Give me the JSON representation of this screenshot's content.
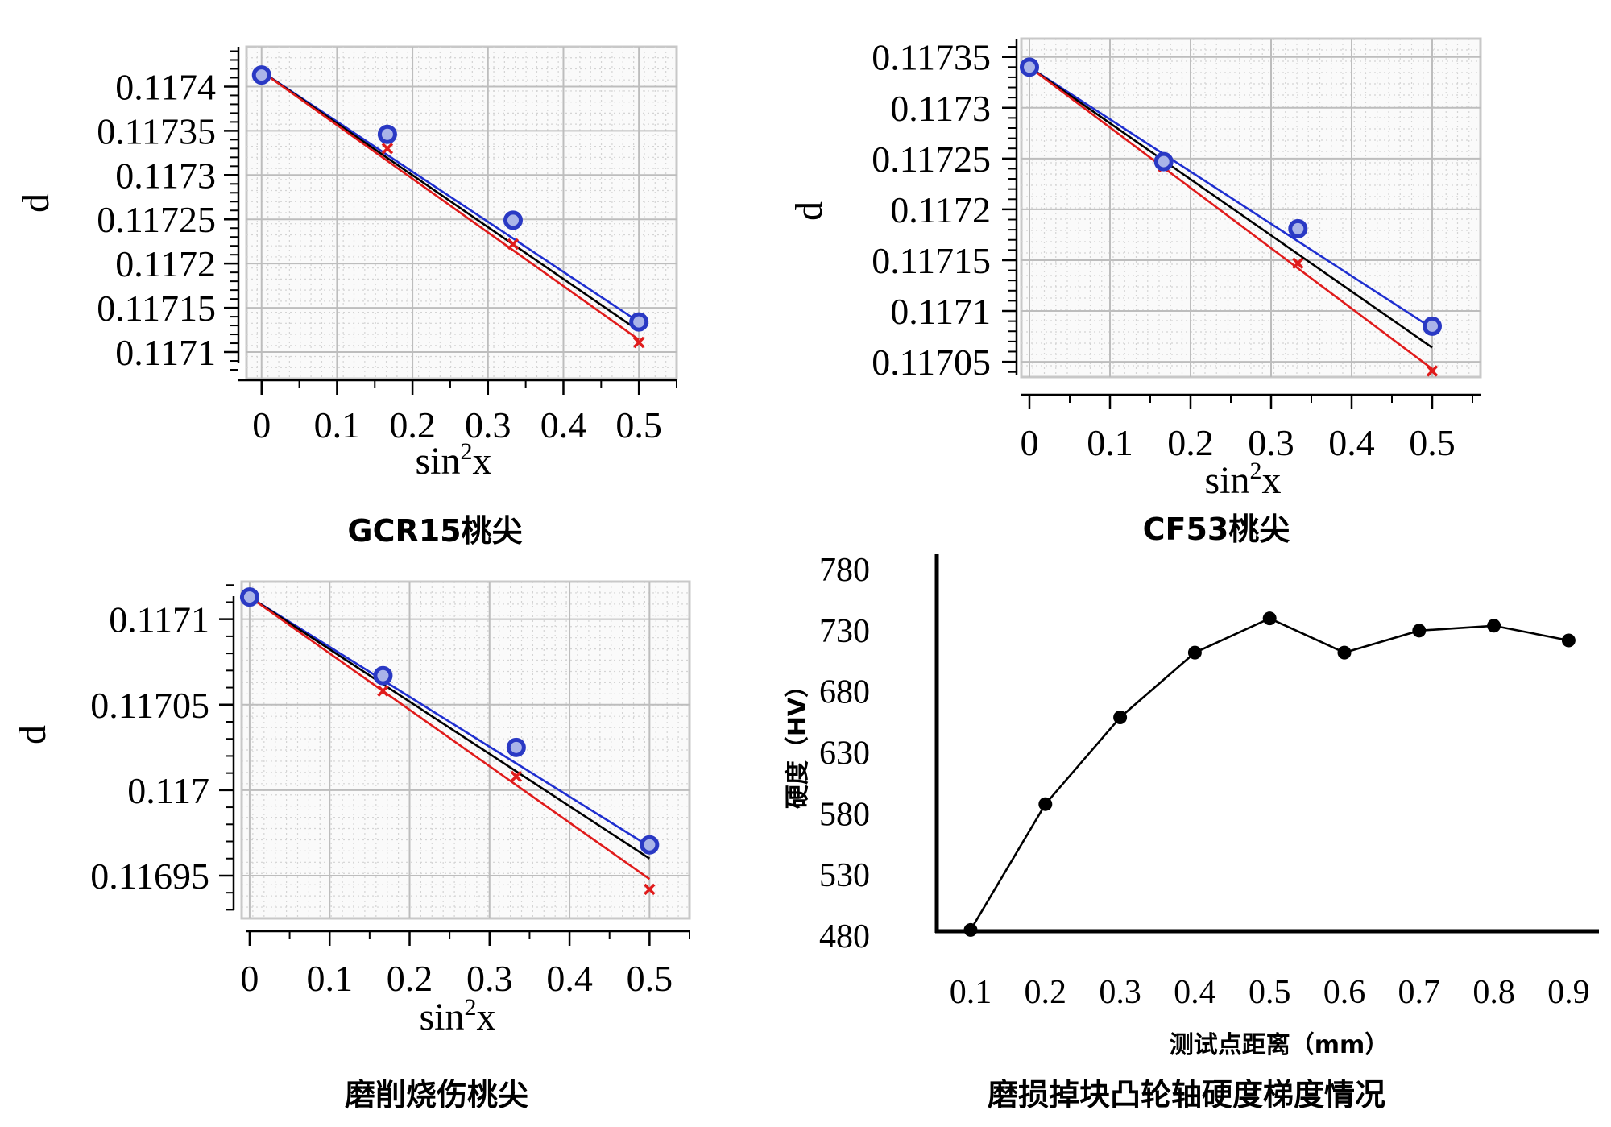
{
  "chart_data": [
    {
      "type": "line",
      "caption": "GCR15桃尖",
      "xlabel": "sin",
      "xlabel_sup": "2",
      "xlabel_tail": "x",
      "ylabel": "d",
      "xlim": [
        -0.02,
        0.55
      ],
      "ylim": [
        0.11707,
        0.117445
      ],
      "xticks": [
        0,
        0.1,
        0.2,
        0.3,
        0.4,
        0.5
      ],
      "xtick_labels": [
        "0",
        "0.1",
        "0.2",
        "0.3",
        "0.4",
        "0.5"
      ],
      "yticks": [
        0.1171,
        0.11715,
        0.1172,
        0.11725,
        0.1173,
        0.11735,
        0.1174
      ],
      "ytick_labels": [
        "0.1171",
        "0.11715",
        "0.1172",
        "0.11725",
        "0.1173",
        "0.11735",
        "0.1174"
      ],
      "series": [
        {
          "name": "blue fit",
          "color": "#1f2fd0",
          "kind": "line",
          "x": [
            0,
            0.5
          ],
          "y": [
            0.117417,
            0.117134
          ]
        },
        {
          "name": "black fit",
          "color": "#000000",
          "kind": "line",
          "x": [
            0,
            0.5
          ],
          "y": [
            0.117417,
            0.117124
          ]
        },
        {
          "name": "red fit",
          "color": "#e01b1b",
          "kind": "line",
          "x": [
            0,
            0.5
          ],
          "y": [
            0.117417,
            0.117114
          ]
        },
        {
          "name": "measured (circle)",
          "color": "#2a39c4",
          "kind": "circle",
          "x": [
            0,
            0.1667,
            0.3333,
            0.5
          ],
          "y": [
            0.117413,
            0.117346,
            0.117249,
            0.117134
          ]
        },
        {
          "name": "measured (cross)",
          "color": "#e01b1b",
          "kind": "cross",
          "x": [
            0,
            0.1667,
            0.3333,
            0.5
          ],
          "y": [
            0.117413,
            0.11733,
            0.117222,
            0.117111
          ]
        }
      ]
    },
    {
      "type": "line",
      "caption": "CF53桃尖",
      "xlabel": "sin",
      "xlabel_sup": "2",
      "xlabel_tail": "x",
      "ylabel": "d",
      "xlim": [
        -0.01,
        0.56
      ],
      "ylim": [
        0.117035,
        0.117368
      ],
      "xticks": [
        0,
        0.1,
        0.2,
        0.3,
        0.4,
        0.5
      ],
      "xtick_labels": [
        "0",
        "0.1",
        "0.2",
        "0.3",
        "0.4",
        "0.5"
      ],
      "yticks": [
        0.11705,
        0.1171,
        0.11715,
        0.1172,
        0.11725,
        0.1173,
        0.11735
      ],
      "ytick_labels": [
        "0.11705",
        "0.1171",
        "0.11715",
        "0.1172",
        "0.11725",
        "0.1173",
        "0.11735"
      ],
      "series": [
        {
          "name": "blue fit",
          "color": "#1f2fd0",
          "kind": "line",
          "x": [
            0,
            0.5
          ],
          "y": [
            0.11734,
            0.117083
          ]
        },
        {
          "name": "black fit",
          "color": "#000000",
          "kind": "line",
          "x": [
            0,
            0.5
          ],
          "y": [
            0.11734,
            0.117064
          ]
        },
        {
          "name": "red fit",
          "color": "#e01b1b",
          "kind": "line",
          "x": [
            0,
            0.5
          ],
          "y": [
            0.11734,
            0.117043
          ]
        },
        {
          "name": "measured (circle)",
          "color": "#2a39c4",
          "kind": "circle",
          "x": [
            0,
            0.1667,
            0.3333,
            0.5
          ],
          "y": [
            0.11734,
            0.117247,
            0.117181,
            0.117085
          ]
        },
        {
          "name": "measured (cross)",
          "color": "#e01b1b",
          "kind": "cross",
          "x": [
            0,
            0.1667,
            0.3333,
            0.5
          ],
          "y": [
            0.11734,
            0.117242,
            0.117147,
            0.117041
          ]
        }
      ]
    },
    {
      "type": "line",
      "caption": "磨削烧伤桃尖",
      "xlabel": "sin",
      "xlabel_sup": "2",
      "xlabel_tail": "x",
      "ylabel": "d",
      "xlim": [
        -0.01,
        0.55
      ],
      "ylim": [
        0.116925,
        0.117122
      ],
      "xticks": [
        0,
        0.1,
        0.2,
        0.3,
        0.4,
        0.5
      ],
      "xtick_labels": [
        "0",
        "0.1",
        "0.2",
        "0.3",
        "0.4",
        "0.5"
      ],
      "yticks": [
        0.11695,
        0.117,
        0.11705,
        0.1171
      ],
      "ytick_labels": [
        "0.11695",
        "0.117",
        "0.11705",
        "0.1171"
      ],
      "series": [
        {
          "name": "blue fit",
          "color": "#1f2fd0",
          "kind": "line",
          "x": [
            0,
            0.5
          ],
          "y": [
            0.117113,
            0.116967
          ]
        },
        {
          "name": "black fit",
          "color": "#000000",
          "kind": "line",
          "x": [
            0,
            0.5
          ],
          "y": [
            0.117113,
            0.11696
          ]
        },
        {
          "name": "red fit",
          "color": "#e01b1b",
          "kind": "line",
          "x": [
            0,
            0.5
          ],
          "y": [
            0.117113,
            0.116948
          ]
        },
        {
          "name": "measured (circle)",
          "color": "#2a39c4",
          "kind": "circle",
          "x": [
            0,
            0.1667,
            0.3333,
            0.5
          ],
          "y": [
            0.117113,
            0.117067,
            0.117025,
            0.116968
          ]
        },
        {
          "name": "measured (cross)",
          "color": "#e01b1b",
          "kind": "cross",
          "x": [
            0,
            0.1667,
            0.3333,
            0.5
          ],
          "y": [
            0.117113,
            0.117058,
            0.117008,
            0.116942
          ]
        }
      ]
    },
    {
      "type": "line",
      "caption": "磨损掉块凸轮轴硬度梯度情况",
      "xlabel": "测试点距离（mm）",
      "ylabel": "硬度（HV）",
      "ylim": [
        480,
        780
      ],
      "yticks": [
        480,
        530,
        580,
        630,
        680,
        730,
        780
      ],
      "ytick_labels": [
        "480",
        "530",
        "580",
        "630",
        "680",
        "730",
        "780"
      ],
      "categories": [
        "0.1",
        "0.2",
        "0.3",
        "0.4",
        "0.5",
        "0.6",
        "0.7",
        "0.8",
        "0.9"
      ],
      "values": [
        485,
        588,
        659,
        712,
        740,
        712,
        730,
        734,
        722
      ]
    }
  ]
}
